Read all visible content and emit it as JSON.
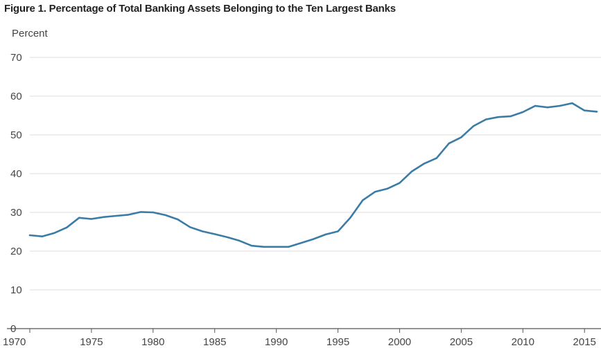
{
  "chart_data": {
    "type": "line",
    "title": "Figure 1. Percentage of Total Banking Assets Belonging to the Ten Largest Banks",
    "ylabel": "Percent",
    "xlabel": "",
    "ylim": [
      0,
      70
    ],
    "xlim": [
      1970,
      2016
    ],
    "yticks": [
      0,
      10,
      20,
      30,
      40,
      50,
      60,
      70
    ],
    "xticks": [
      1970,
      1975,
      1980,
      1985,
      1990,
      1995,
      2000,
      2005,
      2010,
      2015
    ],
    "grid": true,
    "legend": "none",
    "line_color": "#3a7ca5",
    "series": [
      {
        "x": [
          1970,
          1971,
          1972,
          1973,
          1974,
          1975,
          1976,
          1977,
          1978,
          1979,
          1980,
          1981,
          1982,
          1983,
          1984,
          1985,
          1986,
          1987,
          1988,
          1989,
          1990,
          1991,
          1992,
          1993,
          1994,
          1995,
          1996,
          1997,
          1998,
          1999,
          2000,
          2001,
          2002,
          2003,
          2004,
          2005,
          2006,
          2007,
          2008,
          2009,
          2010,
          2011,
          2012,
          2013,
          2014,
          2015,
          2016
        ],
        "values": [
          24.1,
          23.8,
          24.7,
          26.1,
          28.6,
          28.3,
          28.8,
          29.1,
          29.4,
          30.1,
          30.0,
          29.3,
          28.2,
          26.2,
          25.1,
          24.4,
          23.6,
          22.7,
          21.4,
          21.1,
          21.1,
          21.1,
          22.1,
          23.1,
          24.3,
          25.1,
          28.6,
          33.1,
          35.3,
          36.1,
          37.6,
          40.6,
          42.6,
          44.0,
          47.8,
          49.4,
          52.3,
          54.0,
          54.6,
          54.8,
          55.9,
          57.5,
          57.1,
          57.5,
          58.2,
          56.3,
          56.0
        ]
      }
    ]
  }
}
